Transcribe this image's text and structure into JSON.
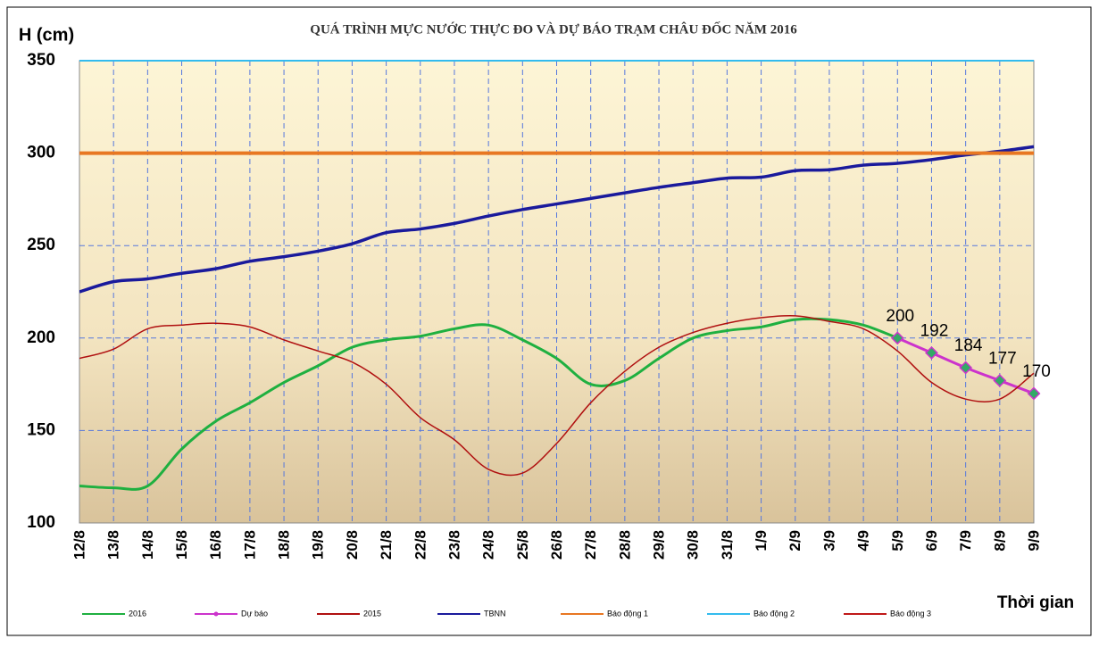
{
  "chart_data": {
    "type": "line",
    "title": "QUÁ TRÌNH MỰC NƯỚC THỰC ĐO VÀ DỰ BÁO TRẠM CHÂU ĐỐC NĂM 2016",
    "y_label": "H (cm)",
    "x_label": "Thời gian",
    "categories": [
      "12/8",
      "13/8",
      "14/8",
      "15/8",
      "16/8",
      "17/8",
      "18/8",
      "19/8",
      "20/8",
      "21/8",
      "22/8",
      "23/8",
      "24/8",
      "25/8",
      "26/8",
      "27/8",
      "28/8",
      "29/8",
      "30/8",
      "31/8",
      "1/9",
      "2/9",
      "3/9",
      "4/9",
      "5/9",
      "6/9",
      "7/9",
      "8/9",
      "9/9"
    ],
    "ylim": [
      100,
      350
    ],
    "yticks": [
      100,
      150,
      200,
      250,
      300,
      350
    ],
    "grid": true,
    "series": [
      {
        "name": "2016",
        "color": "#1fb040",
        "values": [
          120,
          119,
          120,
          140,
          155,
          165,
          176,
          185,
          195,
          199,
          201,
          205,
          207,
          199,
          189,
          175,
          177,
          189,
          200,
          204,
          206,
          210,
          210,
          207,
          200,
          null,
          null,
          null,
          null
        ]
      },
      {
        "name": "Dự báo",
        "color": "#cc33cc",
        "markers": true,
        "data_labels": true,
        "values": [
          null,
          null,
          null,
          null,
          null,
          null,
          null,
          null,
          null,
          null,
          null,
          null,
          null,
          null,
          null,
          null,
          null,
          null,
          null,
          null,
          null,
          null,
          null,
          null,
          200,
          192,
          184,
          177,
          170
        ]
      },
      {
        "name": "2015",
        "color": "#b01010",
        "values": [
          189,
          194,
          205,
          207,
          208,
          206,
          199,
          193,
          187,
          175,
          157,
          145,
          129,
          127,
          143,
          165,
          182,
          195,
          203,
          208,
          211,
          212,
          209,
          205,
          193,
          176,
          167,
          167,
          181
        ]
      },
      {
        "name": "TBNN",
        "color": "#1a1a9c",
        "values": [
          225,
          230.5,
          232,
          235,
          237.5,
          241.5,
          244,
          247,
          251,
          257,
          259,
          262,
          266,
          269.5,
          272.5,
          275.5,
          278.5,
          281.5,
          284,
          286.5,
          287,
          290.5,
          291,
          293.5,
          294.5,
          296.5,
          299,
          301,
          303.5
        ]
      },
      {
        "name": "Báo động 1",
        "color": "#e87722",
        "values": [
          300,
          300,
          300,
          300,
          300,
          300,
          300,
          300,
          300,
          300,
          300,
          300,
          300,
          300,
          300,
          300,
          300,
          300,
          300,
          300,
          300,
          300,
          300,
          300,
          300,
          300,
          300,
          300,
          300
        ]
      },
      {
        "name": "Báo động 2",
        "color": "#33bbee",
        "values": [
          350,
          350,
          350,
          350,
          350,
          350,
          350,
          350,
          350,
          350,
          350,
          350,
          350,
          350,
          350,
          350,
          350,
          350,
          350,
          350,
          350,
          350,
          350,
          350,
          350,
          350,
          350,
          350,
          350
        ]
      },
      {
        "name": "Báo động 3",
        "color": "#c01818",
        "values": [
          null,
          null,
          null,
          null,
          null,
          null,
          null,
          null,
          null,
          null,
          null,
          null,
          null,
          null,
          null,
          null,
          null,
          null,
          null,
          null,
          null,
          null,
          null,
          null,
          null,
          null,
          null,
          null,
          null
        ]
      }
    ]
  }
}
